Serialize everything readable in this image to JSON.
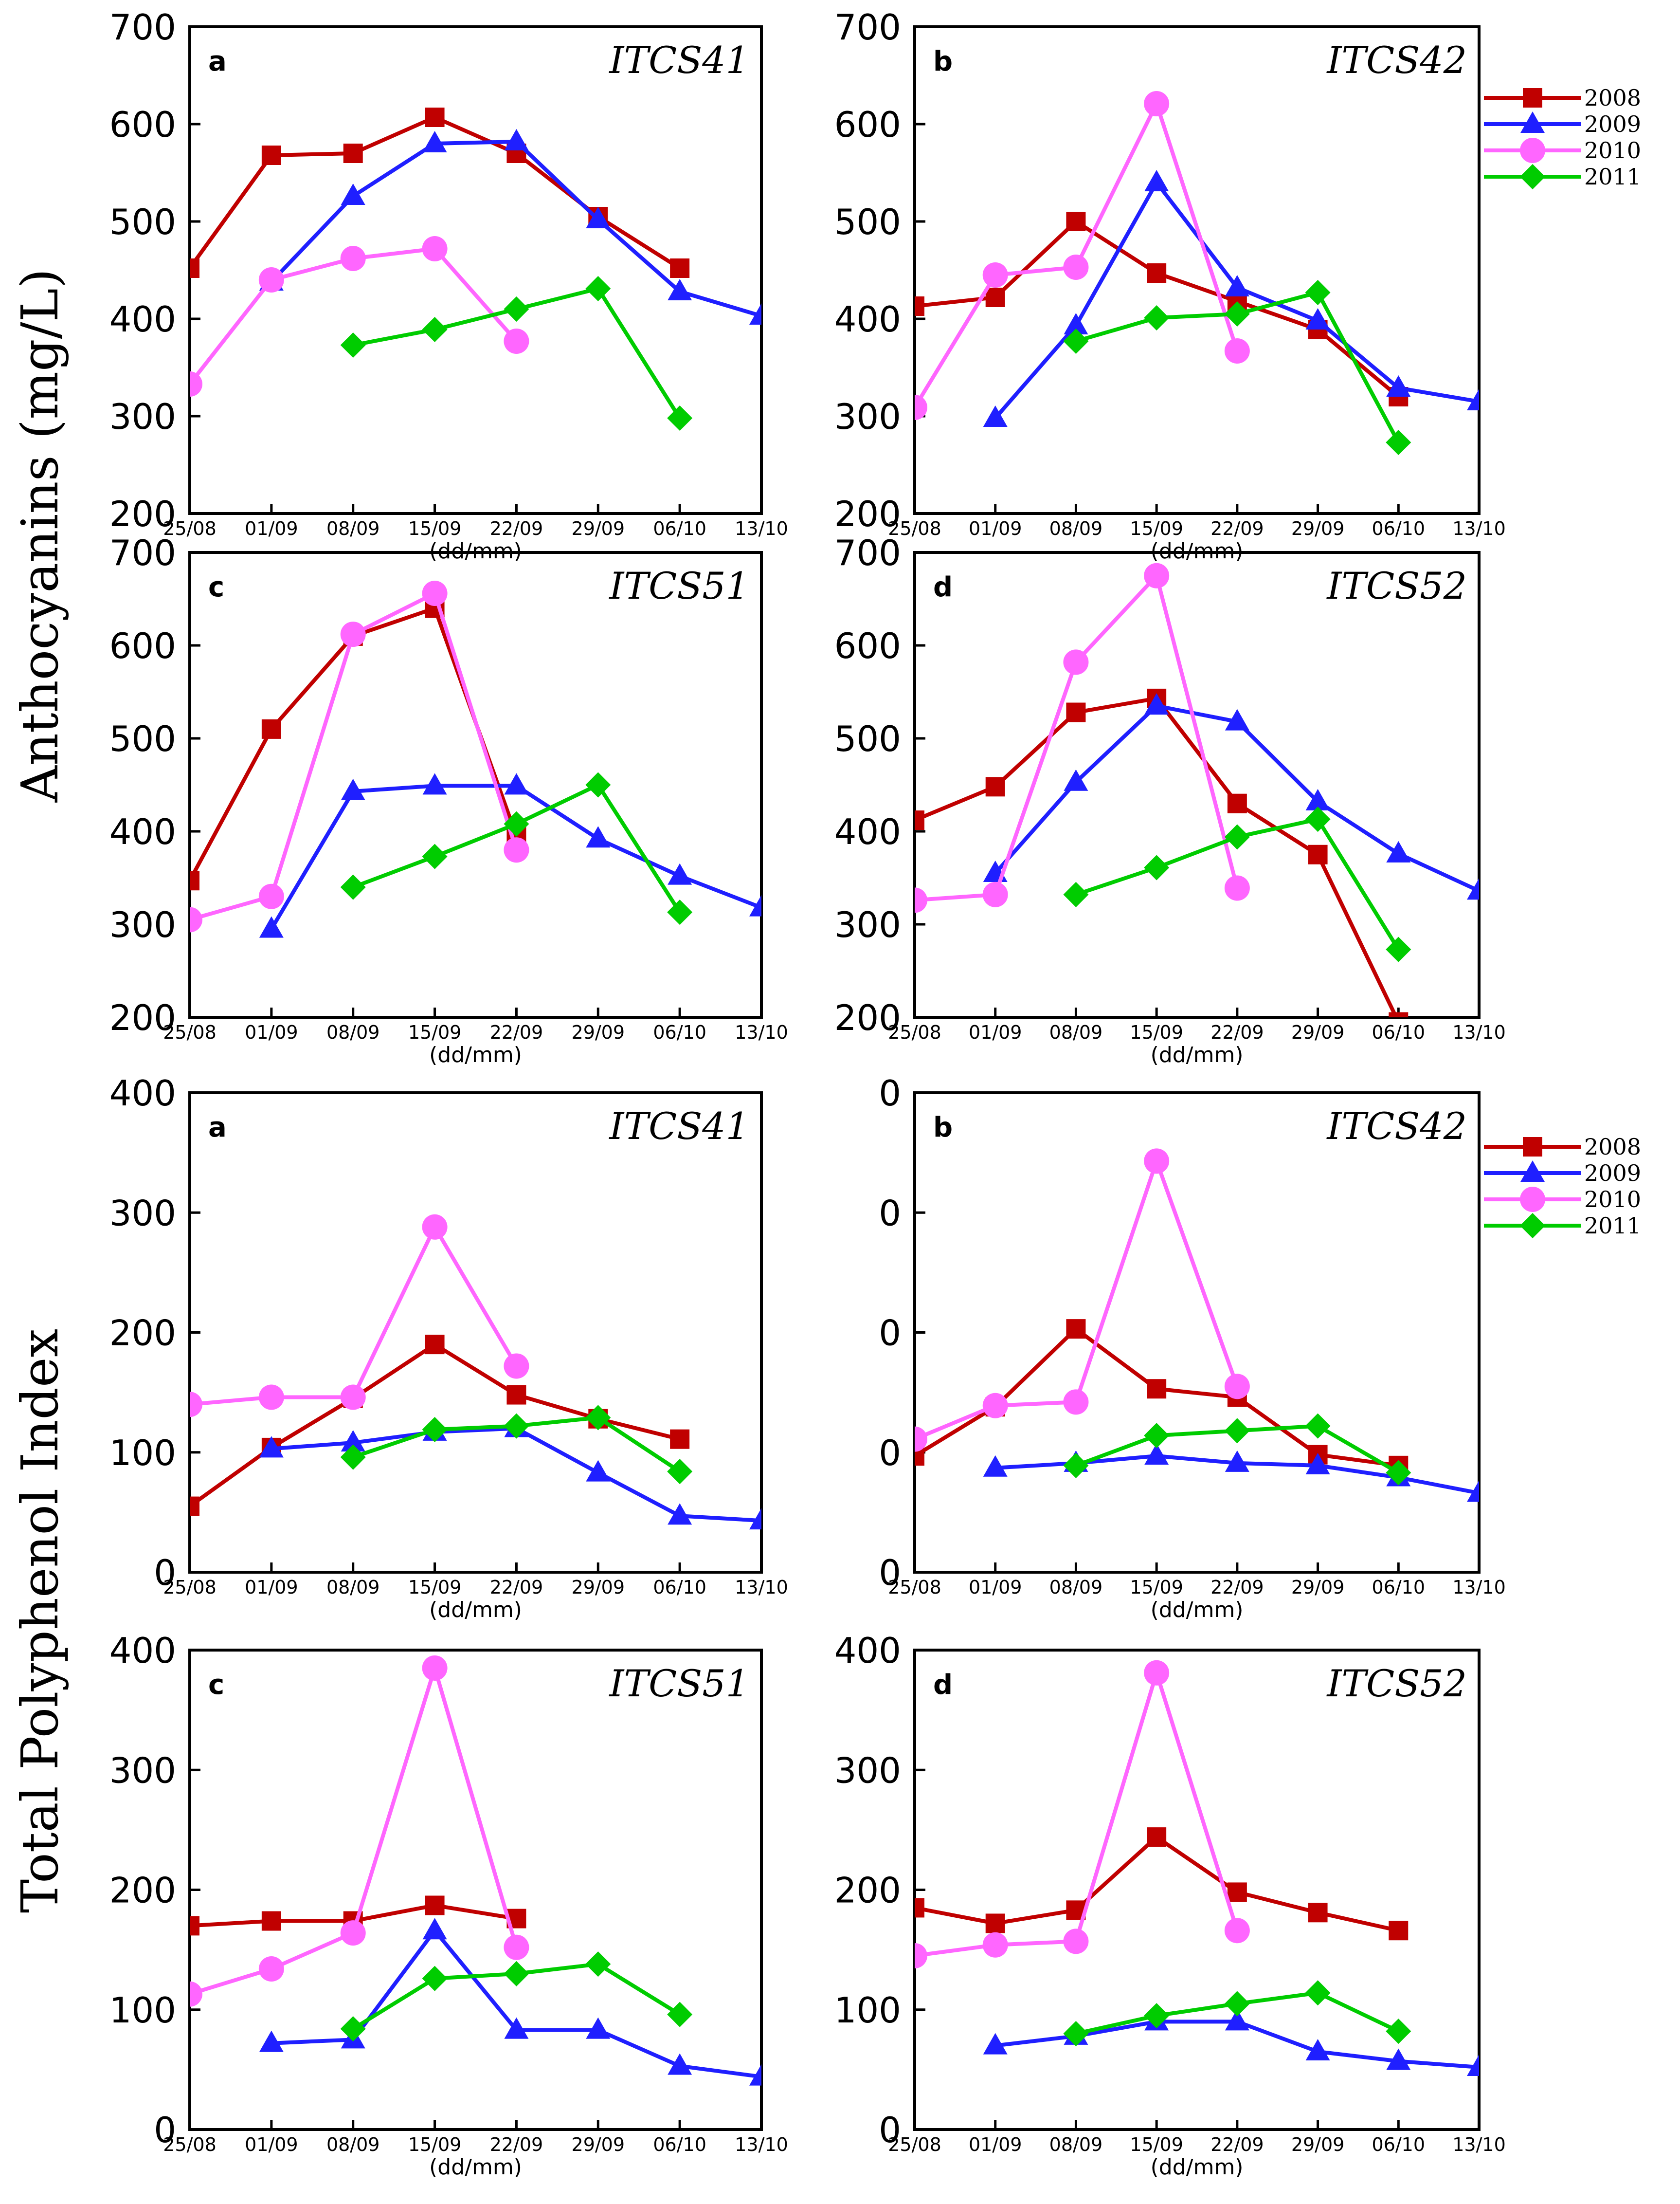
{
  "figure": {
    "ylabel_anthocyanins": "Anthocyanins (mg/L)",
    "ylabel_polyphenol": "Total Polyphenol Index",
    "xlabel": "(dd/mm)"
  },
  "legend": [
    {
      "label": "2008",
      "color": "#c00000",
      "marker": "square"
    },
    {
      "label": "2009",
      "color": "#1f1fff",
      "marker": "triangle"
    },
    {
      "label": "2010",
      "color": "#ff66ff",
      "marker": "circle"
    },
    {
      "label": "2011",
      "color": "#00cc00",
      "marker": "diamond"
    }
  ],
  "chart_data": [
    {
      "type": "line",
      "panel": "a",
      "title": "ITCS41",
      "xlabel": "(dd/mm)",
      "ylabel": "Anthocyanins (mg/L)",
      "categories": [
        "25/08",
        "01/09",
        "08/09",
        "15/09",
        "22/09",
        "29/09",
        "06/10",
        "13/10"
      ],
      "yticks": [
        "200",
        "300",
        "400",
        "500",
        "600",
        "700"
      ],
      "ylim": [
        200,
        700
      ],
      "series": [
        {
          "name": "2008",
          "x": [
            0,
            1,
            2,
            3,
            4,
            5,
            6
          ],
          "values": [
            452,
            568,
            570,
            607,
            570,
            505,
            452
          ]
        },
        {
          "name": "2009",
          "x": [
            1,
            2,
            3,
            4,
            5,
            6,
            7
          ],
          "values": [
            438,
            526,
            580,
            582,
            502,
            428,
            403
          ]
        },
        {
          "name": "2010",
          "x": [
            0,
            1,
            2,
            3,
            4
          ],
          "values": [
            333,
            440,
            462,
            472,
            377
          ]
        },
        {
          "name": "2011",
          "x": [
            2,
            3,
            4,
            5,
            6
          ],
          "values": [
            373,
            389,
            410,
            431,
            298
          ]
        }
      ]
    },
    {
      "type": "line",
      "panel": "b",
      "title": "ITCS42",
      "xlabel": "(dd/mm)",
      "ylabel": "Anthocyanins (mg/L)",
      "categories": [
        "25/08",
        "01/09",
        "08/09",
        "15/09",
        "22/09",
        "29/09",
        "06/10",
        "13/10"
      ],
      "yticks": [
        "200",
        "300",
        "400",
        "500",
        "600",
        "700"
      ],
      "ylim": [
        200,
        700
      ],
      "series": [
        {
          "name": "2008",
          "x": [
            0,
            1,
            2,
            3,
            4,
            5,
            6
          ],
          "values": [
            413,
            422,
            500,
            447,
            418,
            389,
            320
          ]
        },
        {
          "name": "2009",
          "x": [
            1,
            2,
            3,
            4,
            5,
            6,
            7
          ],
          "values": [
            298,
            393,
            540,
            432,
            398,
            329,
            315
          ]
        },
        {
          "name": "2010",
          "x": [
            0,
            1,
            2,
            3,
            4
          ],
          "values": [
            309,
            445,
            453,
            621,
            367
          ]
        },
        {
          "name": "2011",
          "x": [
            2,
            3,
            4,
            5,
            6
          ],
          "values": [
            377,
            401,
            405,
            427,
            273
          ]
        }
      ]
    },
    {
      "type": "line",
      "panel": "c",
      "title": "ITCS51",
      "xlabel": "(dd/mm)",
      "ylabel": "Anthocyanins (mg/L)",
      "categories": [
        "25/08",
        "01/09",
        "08/09",
        "15/09",
        "22/09",
        "29/09",
        "06/10",
        "13/10"
      ],
      "yticks": [
        "200",
        "300",
        "400",
        "500",
        "600",
        "700"
      ],
      "ylim": [
        200,
        700
      ],
      "series": [
        {
          "name": "2008",
          "x": [
            0,
            1,
            2,
            3,
            4
          ],
          "values": [
            347,
            510,
            610,
            640,
            395
          ]
        },
        {
          "name": "2009",
          "x": [
            1,
            2,
            3,
            4,
            5,
            6,
            7
          ],
          "values": [
            295,
            443,
            449,
            449,
            392,
            352,
            318
          ]
        },
        {
          "name": "2010",
          "x": [
            0,
            1,
            2,
            3,
            4
          ],
          "values": [
            305,
            330,
            612,
            656,
            380
          ]
        },
        {
          "name": "2011",
          "x": [
            2,
            3,
            4,
            5,
            6
          ],
          "values": [
            340,
            373,
            408,
            450,
            313
          ]
        }
      ]
    },
    {
      "type": "line",
      "panel": "d",
      "title": "ITCS52",
      "xlabel": "(dd/mm)",
      "ylabel": "Anthocyanins (mg/L)",
      "categories": [
        "25/08",
        "01/09",
        "08/09",
        "15/09",
        "22/09",
        "29/09",
        "06/10",
        "13/10"
      ],
      "yticks": [
        "200",
        "300",
        "400",
        "500",
        "600",
        "700"
      ],
      "ylim": [
        200,
        700
      ],
      "series": [
        {
          "name": "2008",
          "x": [
            0,
            1,
            2,
            3,
            4,
            5,
            6
          ],
          "values": [
            412,
            448,
            528,
            543,
            430,
            375,
            195
          ]
        },
        {
          "name": "2009",
          "x": [
            1,
            2,
            3,
            4,
            5,
            6,
            7
          ],
          "values": [
            355,
            453,
            535,
            518,
            432,
            376,
            336
          ]
        },
        {
          "name": "2010",
          "x": [
            0,
            1,
            2,
            3,
            4
          ],
          "values": [
            326,
            332,
            582,
            675,
            339
          ]
        },
        {
          "name": "2011",
          "x": [
            2,
            3,
            4,
            5,
            6
          ],
          "values": [
            332,
            361,
            394,
            413,
            273
          ]
        }
      ]
    },
    {
      "type": "line",
      "panel": "a",
      "title": "ITCS41",
      "xlabel": "(dd/mm)",
      "ylabel": "Total Polyphenol Index",
      "categories": [
        "25/08",
        "01/09",
        "08/09",
        "15/09",
        "22/09",
        "29/09",
        "06/10",
        "13/10"
      ],
      "yticks": [
        "0",
        "100",
        "200",
        "300",
        "400"
      ],
      "ylim": [
        0,
        400
      ],
      "series": [
        {
          "name": "2008",
          "x": [
            0,
            1,
            2,
            3,
            4,
            5,
            6
          ],
          "values": [
            55,
            104,
            145,
            190,
            148,
            128,
            111
          ]
        },
        {
          "name": "2009",
          "x": [
            1,
            2,
            3,
            4,
            5,
            6,
            7
          ],
          "values": [
            103,
            108,
            117,
            120,
            83,
            47,
            43
          ]
        },
        {
          "name": "2010",
          "x": [
            0,
            1,
            2,
            3,
            4
          ],
          "values": [
            140,
            146,
            146,
            288,
            172
          ]
        },
        {
          "name": "2011",
          "x": [
            2,
            3,
            4,
            5,
            6
          ],
          "values": [
            96,
            119,
            122,
            129,
            84
          ]
        }
      ]
    },
    {
      "type": "line",
      "panel": "b",
      "title": "ITCS42",
      "xlabel": "(dd/mm)",
      "ylabel": "Total Polyphenol Index",
      "categories": [
        "25/08",
        "01/09",
        "08/09",
        "15/09",
        "22/09",
        "29/09",
        "06/10",
        "13/10"
      ],
      "yticks": [
        "0",
        "0",
        "0",
        "0",
        "0"
      ],
      "ylim": [
        0,
        400
      ],
      "series": [
        {
          "name": "2008",
          "x": [
            0,
            1,
            2,
            3,
            4,
            5,
            6
          ],
          "values": [
            97,
            138,
            203,
            153,
            146,
            98,
            89
          ]
        },
        {
          "name": "2009",
          "x": [
            1,
            2,
            3,
            4,
            5,
            6,
            7
          ],
          "values": [
            87,
            91,
            97,
            91,
            89,
            79,
            66
          ]
        },
        {
          "name": "2010",
          "x": [
            0,
            1,
            2,
            3,
            4
          ],
          "values": [
            111,
            139,
            142,
            343,
            155
          ]
        },
        {
          "name": "2011",
          "x": [
            2,
            3,
            4,
            5,
            6
          ],
          "values": [
            89,
            114,
            118,
            122,
            83
          ]
        }
      ]
    },
    {
      "type": "line",
      "panel": "c",
      "title": "ITCS51",
      "xlabel": "(dd/mm)",
      "ylabel": "Total Polyphenol Index",
      "categories": [
        "25/08",
        "01/09",
        "08/09",
        "15/09",
        "22/09",
        "29/09",
        "06/10",
        "13/10"
      ],
      "yticks": [
        "0",
        "100",
        "200",
        "300",
        "400"
      ],
      "ylim": [
        0,
        400
      ],
      "series": [
        {
          "name": "2008",
          "x": [
            0,
            1,
            2,
            3,
            4
          ],
          "values": [
            170,
            174,
            174,
            187,
            176
          ]
        },
        {
          "name": "2009",
          "x": [
            1,
            2,
            3,
            4,
            5,
            6,
            7
          ],
          "values": [
            72,
            75,
            166,
            83,
            83,
            53,
            44
          ]
        },
        {
          "name": "2010",
          "x": [
            0,
            1,
            2,
            3,
            4
          ],
          "values": [
            113,
            134,
            164,
            385,
            152
          ]
        },
        {
          "name": "2011",
          "x": [
            2,
            3,
            4,
            5,
            6
          ],
          "values": [
            84,
            126,
            130,
            138,
            96
          ]
        }
      ]
    },
    {
      "type": "line",
      "panel": "d",
      "title": "ITCS52",
      "xlabel": "(dd/mm)",
      "ylabel": "Total Polyphenol Index",
      "categories": [
        "25/08",
        "01/09",
        "08/09",
        "15/09",
        "22/09",
        "29/09",
        "06/10",
        "13/10"
      ],
      "yticks": [
        "0",
        "100",
        "200",
        "300",
        "400"
      ],
      "ylim": [
        0,
        400
      ],
      "series": [
        {
          "name": "2008",
          "x": [
            0,
            1,
            2,
            3,
            4,
            5,
            6
          ],
          "values": [
            185,
            172,
            183,
            244,
            198,
            181,
            166
          ]
        },
        {
          "name": "2009",
          "x": [
            1,
            2,
            3,
            4,
            5,
            6,
            7
          ],
          "values": [
            70,
            78,
            90,
            90,
            65,
            57,
            52
          ]
        },
        {
          "name": "2010",
          "x": [
            0,
            1,
            2,
            3,
            4
          ],
          "values": [
            145,
            154,
            157,
            381,
            166
          ]
        },
        {
          "name": "2011",
          "x": [
            2,
            3,
            4,
            5,
            6
          ],
          "values": [
            80,
            95,
            105,
            114,
            82
          ]
        }
      ]
    }
  ]
}
